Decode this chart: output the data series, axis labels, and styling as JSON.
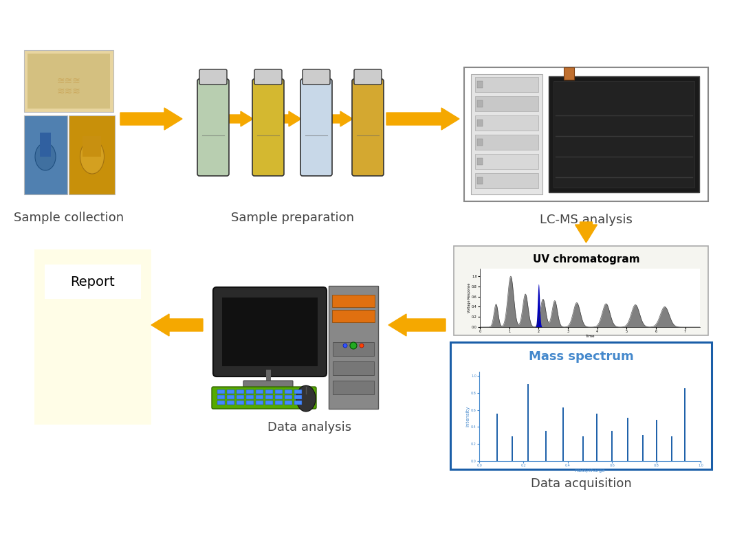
{
  "bg_color": "#ffffff",
  "arrow_color": "#F5A800",
  "labels": {
    "sample_collection": "Sample collection",
    "sample_preparation": "Sample preparation",
    "lcms": "LC-MS analysis",
    "data_acquisition": "Data acquisition",
    "data_analysis": "Data analysis",
    "report": "Report",
    "uv_title": "UV chromatogram",
    "mass_title": "Mass spectrum",
    "voltage_response": "Voltage Response",
    "time": "Time",
    "intensity": "intensity",
    "mass_charge": "mass/charge"
  },
  "report_bg": "#FFFDE7",
  "mass_border": "#1A5EA8",
  "mass_title_color": "#4488CC",
  "mass_axis_color": "#4488CC",
  "mass_bar_color": "#1A5EA8",
  "uv_bar_color": "#555555",
  "uv_highlight": "#0000BB",
  "label_fontsize": 13,
  "label_color": "#444444",
  "tube_colors": [
    "#B8CEB0",
    "#D4B830",
    "#C8D8E8",
    "#D4A830"
  ],
  "tube_cap_color": "#cccccc",
  "tube_outline": "#333333"
}
